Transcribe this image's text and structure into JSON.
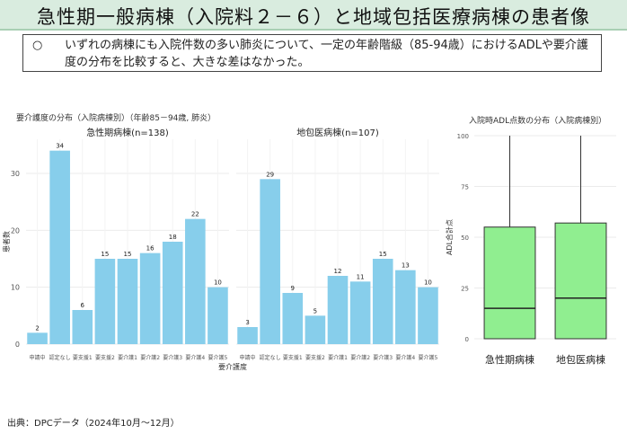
{
  "slide": {
    "title": "急性期一般病棟（入院料２－６）と地域包括医療病棟の患者像",
    "bullet": "○",
    "note": "いずれの病棟にも入院件数の多い肺炎について、一定の年齢階級（85-94歳）におけるADLや要介護度の分布を比較すると、大きな差はなかった。",
    "source": "出典：DPCデータ（2024年10月～12月）"
  },
  "colors": {
    "bar": "#87ceeb",
    "box": "#90ee90",
    "header_bg": "#d9ecdf"
  },
  "chart_data": [
    {
      "type": "bar",
      "title": "要介護度の分布（入院病棟別）（年齢85－94歳, 肺炎）",
      "xlabel": "要介護度",
      "ylabel": "患者数",
      "ylim": [
        0,
        36
      ],
      "yticks": [
        0,
        10,
        20,
        30
      ],
      "categories": [
        "申請中",
        "認定なし",
        "要支援1",
        "要支援2",
        "要介護1",
        "要介護2",
        "要介護3",
        "要介護4",
        "要介護5"
      ],
      "panels": [
        {
          "name": "急性期病棟(n=138)",
          "values": [
            2,
            34,
            6,
            15,
            15,
            16,
            18,
            22,
            10
          ]
        },
        {
          "name": "地包医病棟(n=107)",
          "values": [
            3,
            29,
            9,
            5,
            12,
            11,
            15,
            13,
            10
          ]
        }
      ]
    },
    {
      "type": "box",
      "title": "入院時ADL点数の分布（入院病棟別）",
      "ylabel": "ADL合計点",
      "ylim": [
        0,
        100
      ],
      "yticks": [
        0,
        25,
        50,
        75,
        100
      ],
      "categories": [
        "急性期病棟",
        "地包医病棟"
      ],
      "boxes": [
        {
          "min": 0,
          "q1": 0,
          "median": 15,
          "q3": 55,
          "max": 100
        },
        {
          "min": 0,
          "q1": 0,
          "median": 20,
          "q3": 57,
          "max": 100
        }
      ]
    }
  ]
}
